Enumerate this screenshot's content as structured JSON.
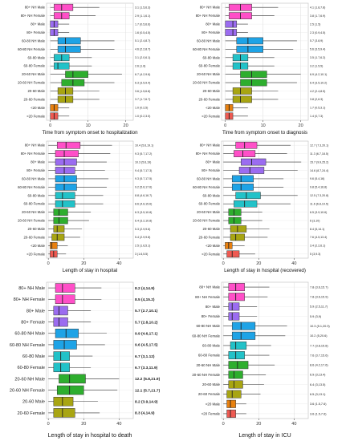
{
  "colors": {
    "80+ NH Male": "#ff4fc8",
    "80+ NH Female": "#ff4fc8",
    "80+ Male": "#9b6cf0",
    "80+ Female": "#9b6cf0",
    "60-80 NH Male": "#1ea3e6",
    "60-80 NH Female": "#1ea3e6",
    "60-80 Male": "#22c2c8",
    "60-80 Female": "#22c2c8",
    "20-60 NH Male": "#2eae2e",
    "20-60 NH Female": "#2eae2e",
    "20-60 Male": "#a8a512",
    "20-60 Female": "#a8a512",
    "<20 Male": "#e8800e",
    "<20 Female": "#ee5a52"
  },
  "chart_data": [
    {
      "type": "boxplot",
      "xlabel": "Time from symptom onset to hospitalization",
      "xlim": [
        -1,
        22
      ],
      "xticks": [
        0,
        10,
        20
      ],
      "grid": true,
      "categories": [
        "80+ NH Male",
        "80+ NH Female",
        "80+ Male",
        "80+ Female",
        "60-80 NH Male",
        "60-80 NH Female",
        "60-80 Male",
        "60-80 Female",
        "20-60 NH Male",
        "20-60 NH Female",
        "20-60 Male",
        "20-60 Female",
        "<20 Male",
        "<20 Female"
      ],
      "stats": [
        [
          0,
          1,
          3,
          6,
          13
        ],
        [
          0,
          1,
          3,
          5,
          12
        ],
        [
          0,
          0,
          1,
          2,
          5
        ],
        [
          0,
          0,
          1,
          2,
          5
        ],
        [
          0,
          2,
          4,
          8,
          17
        ],
        [
          0,
          2,
          4,
          8,
          17
        ],
        [
          0,
          1,
          3,
          5,
          11
        ],
        [
          0,
          1,
          2,
          5,
          11
        ],
        [
          0,
          4,
          6,
          10,
          19
        ],
        [
          0,
          3,
          6,
          9,
          17
        ],
        [
          0,
          2,
          4,
          6,
          13
        ],
        [
          0,
          2,
          4,
          6,
          13
        ],
        [
          0,
          0,
          1,
          2,
          5
        ],
        [
          0,
          0,
          1,
          2,
          5
        ]
      ],
      "labels": [
        "3.1 (1.5,6.3)",
        "2.9 (1.1,6.1)",
        "1.7 (0.5,6.6)",
        "1.6 (0.5,4.5)",
        "5.1 (2.4,8.7)",
        "4.6 (2.2,8.7)",
        "3.1 (2.0,6.1)",
        "2.6 (1.6)",
        "6.7 (4.2,9.6)",
        "6.3 (3.5,9.4)",
        "3.6 (1.5,6.8)",
        "3.7 (1.7,6.7)",
        "1.0 (0.2,5)",
        "1.0 (0.2,3.0)"
      ]
    },
    {
      "type": "boxplot",
      "xlabel": "Time from symptom onset to diagnosis",
      "xlim": [
        -1,
        22
      ],
      "xticks": [
        0,
        10,
        20
      ],
      "grid": true,
      "categories": [
        "80+ NH Male",
        "80+ NH Female",
        "80+ Male",
        "80+ Female",
        "60-80 NH Male",
        "60-80 NH Female",
        "60-80 Male",
        "60-80 Female",
        "20-60 NH Male",
        "20-60 NH Female",
        "20-60 Male",
        "20-60 Female",
        "<20 Male",
        "<20 Female"
      ],
      "stats": [
        [
          0,
          1,
          4,
          7,
          14
        ],
        [
          0,
          1,
          4,
          7,
          13
        ],
        [
          0,
          0,
          2,
          3,
          6
        ],
        [
          0,
          0,
          2,
          3,
          6
        ],
        [
          0,
          3,
          6,
          10,
          19
        ],
        [
          0,
          3,
          6,
          10,
          18
        ],
        [
          0,
          2,
          4,
          6,
          13
        ],
        [
          0,
          2,
          4,
          6,
          13
        ],
        [
          0,
          4,
          7,
          11,
          20
        ],
        [
          0,
          4,
          7,
          11,
          19
        ],
        [
          0,
          2,
          4,
          7,
          14
        ],
        [
          0,
          2,
          4,
          7,
          14
        ],
        [
          0,
          0,
          1,
          2,
          6
        ],
        [
          0,
          0,
          1,
          2,
          6
        ]
      ],
      "labels": [
        "4.1 (1.8,7.8)",
        "3.8 (1.7,6.9)",
        "2.5 (1.5)",
        "2.3 (0.9,4.5)",
        "5.7 (3.8,9)",
        "5.6 (3.5,9.4)",
        "3.5 (1.7,6.2)",
        "3.2 (1.5,5)",
        "6.9 (4.2,10.1)",
        "6.4 (3.5,10.2)",
        "4.2 (2.4,8.5)",
        "3.8 (2,6.3)",
        "1.7 (0.5,3.1)",
        "1.4 (0,7.3)"
      ]
    },
    {
      "type": "boxplot",
      "xlabel": "Length of stay in hospital",
      "xlim": [
        -1,
        48
      ],
      "xticks": [
        0,
        20,
        40
      ],
      "grid": true,
      "categories": [
        "80+ NH Male",
        "80+ NH Female",
        "80+ Male",
        "80+ Female",
        "60-80 NH Male",
        "60-80 NH Female",
        "60-80 Male",
        "60-80 Female",
        "20-60 NH Male",
        "20-60 NH Female",
        "20-60 Male",
        "20-60 Female",
        "<20 Male",
        "<20 Female"
      ],
      "stats": [
        [
          0,
          5,
          10,
          18,
          36
        ],
        [
          0,
          4,
          9,
          17,
          35
        ],
        [
          0,
          4,
          9,
          16,
          33
        ],
        [
          0,
          4,
          9,
          15,
          32
        ],
        [
          0,
          4,
          9,
          16,
          34
        ],
        [
          0,
          4,
          9,
          16,
          33
        ],
        [
          0,
          4,
          8,
          15,
          31
        ],
        [
          0,
          4,
          8,
          15,
          31
        ],
        [
          0,
          3,
          6,
          11,
          24
        ],
        [
          0,
          3,
          6,
          11,
          23
        ],
        [
          0,
          3,
          5,
          9,
          19
        ],
        [
          0,
          2,
          5,
          9,
          18
        ],
        [
          0,
          1,
          2,
          5,
          11
        ],
        [
          0,
          1,
          3,
          5,
          10
        ]
      ],
      "labels": [
        "10.4 (5.6,19.1)",
        "9.3 (5.7,17.2)",
        "10.3 (5.6,19)",
        "9.4 (5.7,17.3)",
        "9.3 (5.7,17.5)",
        "9.2 (5.6,17.6)",
        "8.8 (4.6,16.7)",
        "8.6 (4.6,15.6)",
        "6.3 (3.5,10.8)",
        "6.4 (3.2,10.8)",
        "5.3 (2.9,9.6)",
        "5.4 (2.9,9.8)",
        "2.5 (1.6,5.1)",
        "3 (1.6,5.5)"
      ]
    },
    {
      "type": "boxplot",
      "xlabel": "Length of stay in hospital (recovered)",
      "xlim": [
        -1,
        48
      ],
      "xticks": [
        0,
        20,
        40
      ],
      "grid": true,
      "categories": [
        "80+ NH Male",
        "80+ NH Female",
        "80+ Male",
        "80+ Female",
        "60-80 NH Male",
        "60-80 NH Female",
        "60-80 Male",
        "60-80 Female",
        "20-60 NH Male",
        "20-60 NH Female",
        "20-60 Male",
        "20-60 Female",
        "<20 Male",
        "<20 Female"
      ],
      "stats": [
        [
          0,
          7,
          12,
          19,
          38
        ],
        [
          0,
          6,
          11,
          18,
          36
        ],
        [
          0,
          10,
          16,
          24,
          44
        ],
        [
          0,
          9,
          15,
          23,
          42
        ],
        [
          0,
          5,
          10,
          17,
          34
        ],
        [
          0,
          5,
          10,
          17,
          34
        ],
        [
          0,
          7,
          13,
          21,
          42
        ],
        [
          0,
          6,
          12,
          19,
          38
        ],
        [
          0,
          3,
          6,
          10,
          22
        ],
        [
          0,
          3,
          6,
          10,
          22
        ],
        [
          0,
          4,
          8,
          13,
          26
        ],
        [
          0,
          4,
          7,
          12,
          25
        ],
        [
          0,
          1,
          3,
          5,
          12
        ],
        [
          0,
          2,
          5,
          9,
          18
        ]
      ],
      "labels": [
        "12.7 (7.3,20.1)",
        "11.3 (6.7,18.5)",
        "15.7 (9.9,25.2)",
        "14.6 (8.7,24.4)",
        "9.6 (5.4,16)",
        "9.8 (5.4,16.8)",
        "12.5 (7.3,20.8)",
        "11.6 (6.8,19.5)",
        "6.5 (3.9,10.6)",
        "6 (3,10)",
        "8.4 (5,14.1)",
        "7.6 (4.5,13.4)",
        "3.4 (2.2,6.1)",
        "5 (3,9.3)"
      ]
    },
    {
      "type": "boxplot",
      "xlabel": "Length of stay in hospital to death",
      "xlim": [
        -1,
        48
      ],
      "xticks": [
        0,
        20,
        40
      ],
      "grid": true,
      "categories": [
        "80+ NH Male",
        "80+ NH Female",
        "80+ Male",
        "80+ Female",
        "60-80 NH Male",
        "60-80 NH Female",
        "60-80 Male",
        "60-80 Female",
        "20-60 NH Male",
        "20-60 NH Female",
        "20-60 Male",
        "20-60 Female"
      ],
      "stats": [
        [
          0,
          4,
          8,
          15,
          30
        ],
        [
          0,
          4,
          8,
          15,
          30
        ],
        [
          0,
          3,
          6,
          11,
          24
        ],
        [
          0,
          3,
          6,
          11,
          24
        ],
        [
          0,
          4,
          10,
          17,
          33
        ],
        [
          0,
          3,
          9,
          16,
          32
        ],
        [
          0,
          3,
          7,
          12,
          25
        ],
        [
          0,
          3,
          7,
          12,
          24
        ],
        [
          0,
          6,
          12,
          21,
          40
        ],
        [
          0,
          5,
          12,
          20,
          39
        ],
        [
          0,
          3,
          8,
          14,
          28
        ],
        [
          0,
          3,
          8,
          15,
          29
        ]
      ],
      "labels": [
        "8.2 (4,14.9)",
        "8.5 (4,15.2)",
        "5.7 (2.7,10.1)",
        "5.7 (2.8,10.2)",
        "9.9 (4.6,17.1)",
        "9.6 (4.5,17.5)",
        "6.7 (3,1.12)",
        "6.7 (3.3,11.9)",
        "12.2 (5.8,21.9)",
        "12.1 (5.7,21.7)",
        "8.2 (3.9,14.9)",
        "8.3 (4,14.9)"
      ]
    },
    {
      "type": "boxplot",
      "xlabel": "Length of stay in ICU",
      "xlim": [
        -1,
        48
      ],
      "xticks": [
        0,
        20,
        40
      ],
      "grid": true,
      "categories": [
        "80+ NH Male",
        "80+ NH Female",
        "80+ Male",
        "80+ Female",
        "60-80 NH Male",
        "60-80 NH Female",
        "60-80 Male",
        "60-80 Female",
        "20-60 NH Male",
        "20-60 NH Female",
        "20-60 Male",
        "20-60 Female",
        "<20 Male",
        "<20 Female"
      ],
      "stats": [
        [
          0,
          3,
          7,
          12,
          26
        ],
        [
          0,
          3,
          7,
          12,
          25
        ],
        [
          0,
          3,
          5,
          9,
          19
        ],
        [
          0,
          3,
          5,
          9,
          19
        ],
        [
          0,
          5,
          10,
          18,
          36
        ],
        [
          0,
          5,
          10,
          18,
          35
        ],
        [
          0,
          4,
          7,
          13,
          27
        ],
        [
          0,
          3,
          7,
          12,
          26
        ],
        [
          0,
          3,
          8,
          14,
          29
        ],
        [
          0,
          3,
          6,
          11,
          24
        ],
        [
          0,
          3,
          6,
          11,
          23
        ],
        [
          0,
          2,
          5,
          10,
          21
        ],
        [
          0,
          2,
          4,
          7,
          13
        ],
        [
          0,
          2,
          4,
          7,
          13
        ]
      ],
      "labels": [
        "7.8 (3.6,15.7)",
        "7.8 (3.6,15.9)",
        "5.9 (2.5,11.7)",
        "5.9 (3,9)",
        "10.3 (5.1,20.9)",
        "10.2 (5,20.6)",
        "7.7 (3.8,15.8)",
        "7.6 (3.7,15.6)",
        "8.6 (4.2,17.6)",
        "6.9 (3,13.4)",
        "6.4 (3,13.5)",
        "6.5 (3,13.1)",
        "3.6 (1.5,7.6)",
        "3.6 (1.5,7.6)"
      ]
    }
  ]
}
